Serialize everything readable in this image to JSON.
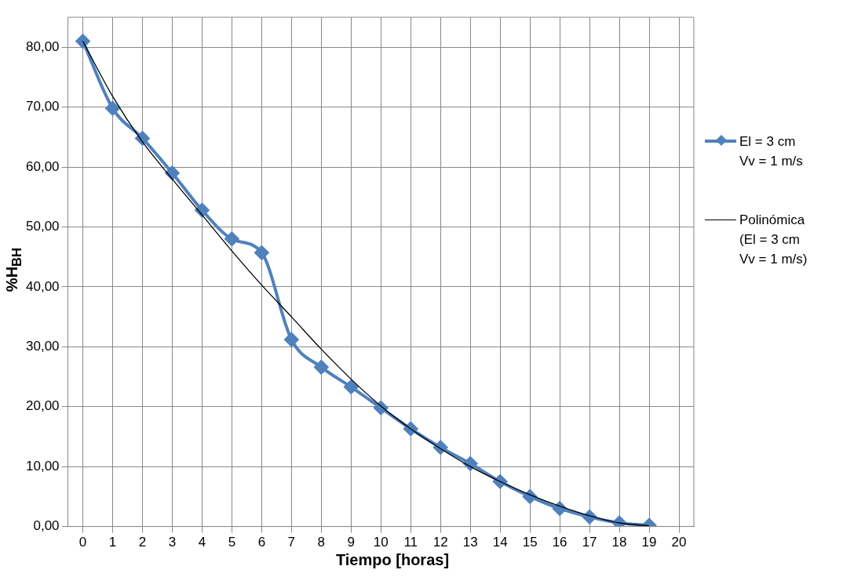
{
  "chart_data": {
    "type": "line",
    "xlabel": "Tiempo [horas]",
    "ylabel": "%H$_{BH}$",
    "x": [
      0,
      1,
      2,
      3,
      4,
      5,
      6,
      7,
      8,
      9,
      10,
      11,
      12,
      13,
      14,
      15,
      16,
      17,
      18,
      19
    ],
    "series": [
      {
        "name": "El = 3 cm\nVv = 1 m/s",
        "color": "#4f81bd",
        "marker": "diamond",
        "values": [
          81.0,
          69.8,
          64.8,
          59.0,
          52.8,
          48.0,
          45.7,
          31.2,
          26.6,
          23.3,
          19.8,
          16.3,
          13.2,
          10.5,
          7.5,
          5.0,
          3.0,
          1.6,
          0.6,
          0.2
        ]
      },
      {
        "name": "Polinómica\n(El = 3 cm\nVv = 1 m/s)",
        "color": "#000000",
        "marker": "none",
        "values": [
          81.0,
          71.8,
          64.2,
          58.0,
          52.0,
          46.0,
          40.3,
          35.0,
          29.6,
          24.6,
          20.1,
          16.3,
          13.0,
          10.0,
          7.5,
          5.3,
          3.4,
          1.8,
          0.6,
          0.1
        ]
      }
    ],
    "xlim": [
      -0.5,
      20.5
    ],
    "xticks": [
      0,
      1,
      2,
      3,
      4,
      5,
      6,
      7,
      8,
      9,
      10,
      11,
      12,
      13,
      14,
      15,
      16,
      17,
      18,
      19,
      20
    ],
    "ylim": [
      0,
      85
    ],
    "yticks": [
      {
        "value": 0,
        "label": "0,00"
      },
      {
        "value": 10,
        "label": "10,00"
      },
      {
        "value": 20,
        "label": "20,00"
      },
      {
        "value": 30,
        "label": "30,00"
      },
      {
        "value": 40,
        "label": "40,00"
      },
      {
        "value": 50,
        "label": "50,00"
      },
      {
        "value": 60,
        "label": "60,00"
      },
      {
        "value": 70,
        "label": "70,00"
      },
      {
        "value": 80,
        "label": "80,00"
      }
    ],
    "grid": true,
    "legend": "right"
  }
}
